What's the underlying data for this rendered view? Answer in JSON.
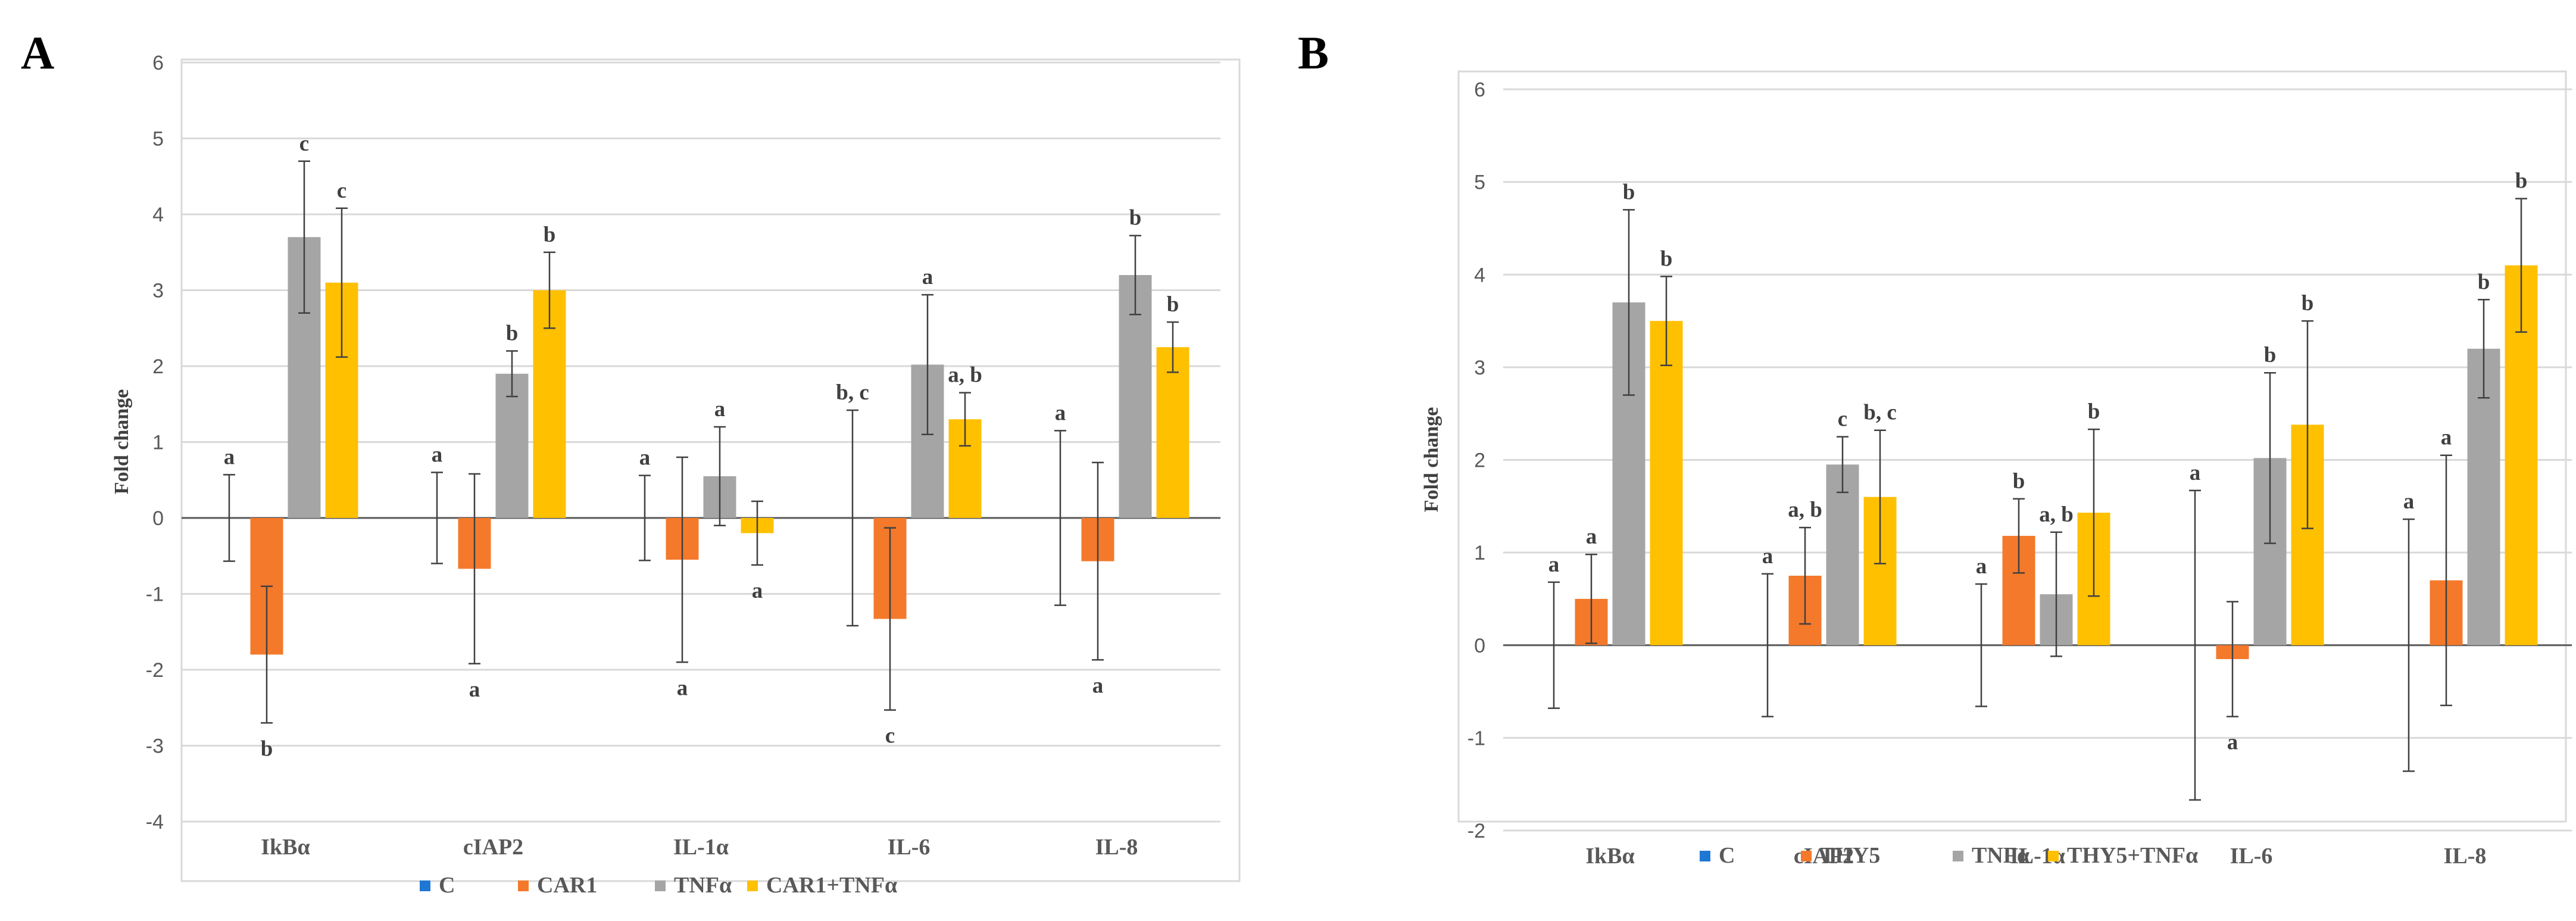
{
  "colors": {
    "C": "#1f77d4",
    "series2": "#f4792b",
    "TNF": "#a5a5a5",
    "combo": "#ffc000"
  },
  "chart_data": [
    {
      "type": "bar",
      "panel_label": "A",
      "ylabel": "Fold change",
      "ylim": [
        -4,
        6
      ],
      "yticks": [
        -4,
        -3,
        -2,
        -1,
        0,
        1,
        2,
        3,
        4,
        5,
        6
      ],
      "categories": [
        "IkBα",
        "cIAP2",
        "IL-1α",
        "IL-6",
        "IL-8"
      ],
      "series": [
        {
          "name": "C",
          "color_key": "C",
          "values": [
            0,
            0,
            0,
            0,
            0
          ],
          "err": [
            0.57,
            0.6,
            0.56,
            1.42,
            1.15
          ],
          "letters": [
            "a",
            "a",
            "a",
            "b, c",
            "a"
          ]
        },
        {
          "name": "CAR1",
          "color_key": "series2",
          "values": [
            -1.8,
            -0.67,
            -0.55,
            -1.33,
            -0.57
          ],
          "err": [
            0.9,
            1.25,
            1.35,
            1.2,
            1.3
          ],
          "letters": [
            "b",
            "a",
            "a",
            "c",
            "a"
          ]
        },
        {
          "name": "TNFα",
          "color_key": "TNF",
          "values": [
            3.7,
            1.9,
            0.55,
            2.02,
            3.2
          ],
          "err": [
            1.0,
            0.3,
            0.65,
            0.92,
            0.52
          ],
          "letters": [
            "c",
            "b",
            "a",
            "a",
            "b"
          ]
        },
        {
          "name": "CAR1+TNFα",
          "color_key": "combo",
          "values": [
            3.1,
            3.0,
            -0.2,
            1.3,
            2.25
          ],
          "err": [
            0.98,
            0.5,
            0.42,
            0.35,
            0.33
          ],
          "letters": [
            "c",
            "b",
            "a",
            "a, b",
            "b"
          ]
        }
      ]
    },
    {
      "type": "bar",
      "panel_label": "B",
      "ylabel": "Fold change",
      "ylim": [
        -2,
        6
      ],
      "yticks": [
        -2,
        -1,
        0,
        1,
        2,
        3,
        4,
        5,
        6
      ],
      "categories": [
        "IkBα",
        "cIAP2",
        "IL-1α",
        "IL-6",
        "IL-8"
      ],
      "series": [
        {
          "name": "C",
          "color_key": "C",
          "values": [
            0,
            0,
            0,
            0,
            0
          ],
          "err": [
            0.68,
            0.77,
            0.66,
            1.67,
            1.36
          ],
          "letters": [
            "a",
            "a",
            "a",
            "a",
            "a"
          ]
        },
        {
          "name": "THY5",
          "color_key": "series2",
          "values": [
            0.5,
            0.75,
            1.18,
            -0.15,
            0.7
          ],
          "err": [
            0.48,
            0.52,
            0.4,
            0.62,
            1.35
          ],
          "letters": [
            "a",
            "a, b",
            "b",
            "a",
            "a"
          ]
        },
        {
          "name": "TNFα",
          "color_key": "TNF",
          "values": [
            3.7,
            1.95,
            0.55,
            2.02,
            3.2
          ],
          "err": [
            1.0,
            0.3,
            0.67,
            0.92,
            0.53
          ],
          "letters": [
            "b",
            "c",
            "a, b",
            "b",
            "b"
          ]
        },
        {
          "name": "THY5+TNFα",
          "color_key": "combo",
          "values": [
            3.5,
            1.6,
            1.43,
            2.38,
            4.1
          ],
          "err": [
            0.48,
            0.72,
            0.9,
            1.12,
            0.72
          ],
          "letters": [
            "b",
            "b, c",
            "b",
            "b",
            "b"
          ]
        }
      ]
    }
  ]
}
